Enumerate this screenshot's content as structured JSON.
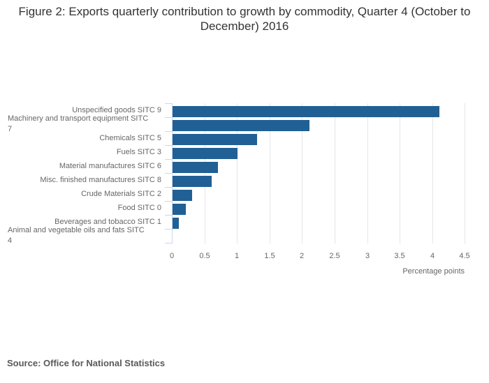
{
  "title": "Figure 2: Exports quarterly contribution to growth by commodity, Quarter 4 (October to December) 2016",
  "source": "Source: Office for National Statistics",
  "colors": {
    "bar": "#206095",
    "axis_line": "#ccd6eb",
    "gridline": "#e6e6e6",
    "title_text": "#333333",
    "label_text": "#666666",
    "source_text": "#595959"
  },
  "chart_data": {
    "type": "bar",
    "orientation": "horizontal",
    "title": "Figure 2: Exports quarterly contribution to growth by commodity, Quarter 4 (October to December) 2016",
    "categories": [
      "Unspecified goods SITC 9",
      "Machinery and transport equipment SITC 7",
      "Chemicals SITC 5",
      "Fuels SITC 3",
      "Material manufactures SITC 6",
      "Misc. finished manufactures SITC 8",
      "Crude Materials SITC 2",
      "Food SITC 0",
      "Beverages and tobacco SITC 1",
      "Animal and vegetable oils and fats SITC 4"
    ],
    "values": [
      4.1,
      2.1,
      1.3,
      1.0,
      0.7,
      0.6,
      0.3,
      0.2,
      0.1,
      0
    ],
    "xlabel": "Percentage points",
    "ylabel": "",
    "xlim": [
      0,
      4.5
    ],
    "x_tick_labels": [
      "0",
      "0.5",
      "1",
      "1.5",
      "2",
      "2.5",
      "3",
      "3.5",
      "4",
      "4.5"
    ],
    "grid": true,
    "legend": "none",
    "source_note": "Source: Office for National Statistics"
  }
}
